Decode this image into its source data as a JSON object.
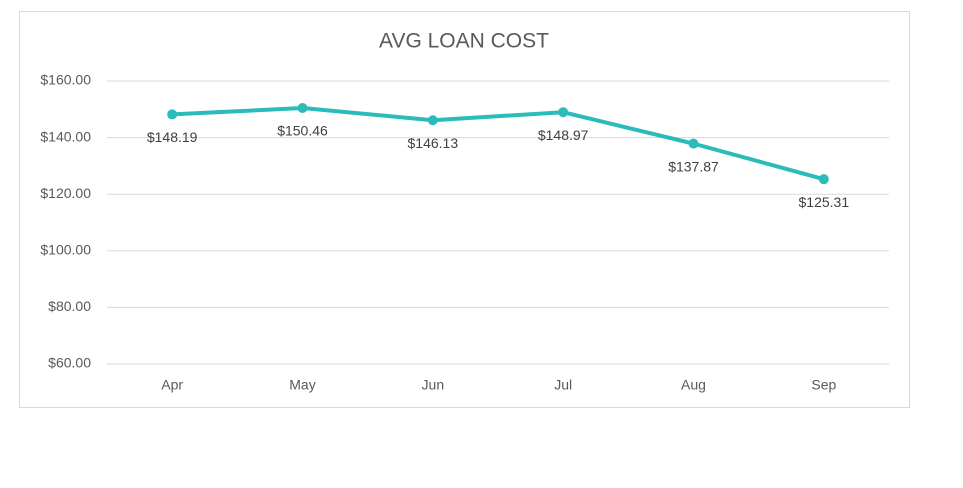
{
  "chart_data": {
    "type": "line",
    "title": "AVG LOAN COST",
    "categories": [
      "Apr",
      "May",
      "Jun",
      "Jul",
      "Aug",
      "Sep"
    ],
    "values": [
      148.19,
      150.46,
      146.13,
      148.97,
      137.87,
      125.31
    ],
    "value_labels": [
      "$148.19",
      "$150.46",
      "$146.13",
      "$148.97",
      "$137.87",
      "$125.31"
    ],
    "color": "#2bbbbb",
    "ylim": [
      60,
      160
    ],
    "yticks": [
      {
        "value": 60,
        "label": "$60.00"
      },
      {
        "value": 80,
        "label": "$80.00"
      },
      {
        "value": 100,
        "label": "$100.00"
      },
      {
        "value": 120,
        "label": "$120.00"
      },
      {
        "value": 140,
        "label": "$140.00"
      },
      {
        "value": 160,
        "label": "$160.00"
      }
    ],
    "grid": true
  }
}
